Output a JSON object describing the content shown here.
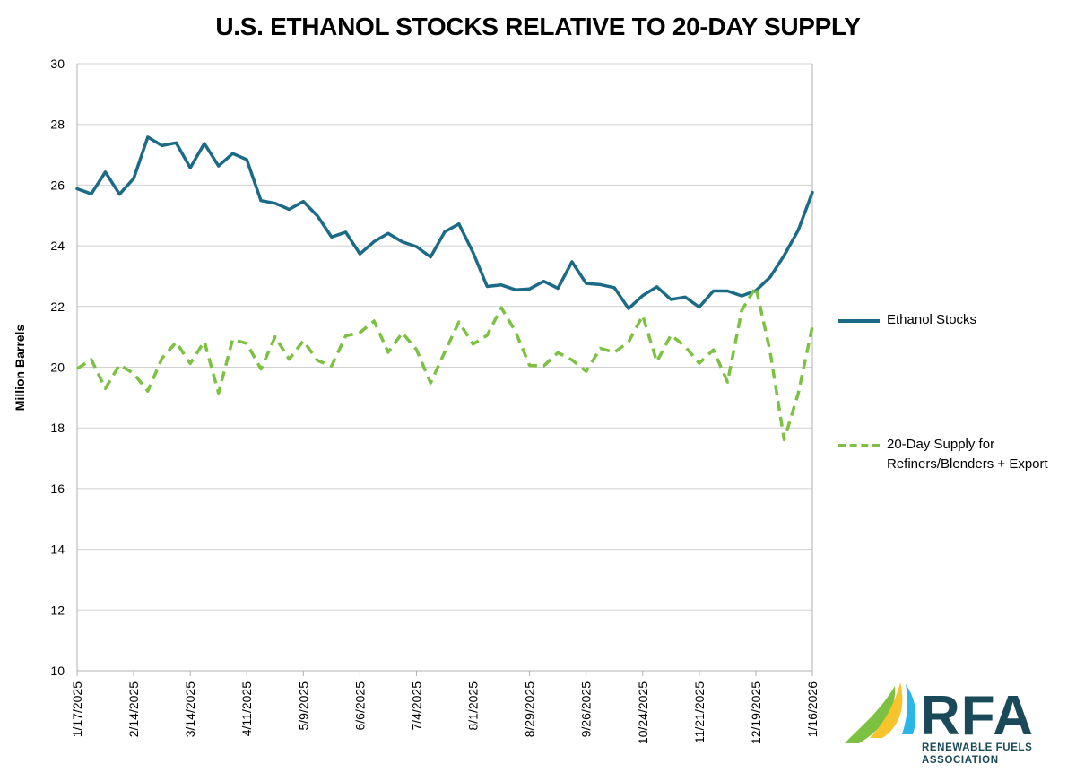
{
  "chart_data": {
    "type": "line",
    "title": "U.S. ETHANOL STOCKS RELATIVE TO 20-DAY SUPPLY",
    "ylabel": "Million Barrels",
    "xlabel": "",
    "ylim": [
      10,
      30
    ],
    "yticks": [
      10,
      12,
      14,
      16,
      18,
      20,
      22,
      24,
      26,
      28,
      30
    ],
    "x_tick_labels": [
      "1/17/2025",
      "2/14/2025",
      "3/14/2025",
      "4/11/2025",
      "5/9/2025",
      "6/6/2025",
      "7/4/2025",
      "8/1/2025",
      "8/29/2025",
      "9/26/2025",
      "10/24/2025",
      "11/21/2025",
      "12/19/2025",
      "1/16/2026"
    ],
    "x_tick_interval_weeks": 4,
    "grid": "horizontal",
    "legend_position": "right",
    "series": [
      {
        "name": "Ethanol Stocks",
        "color": "#1b6b87",
        "style": "solid",
        "values": [
          25.88,
          25.71,
          26.43,
          25.7,
          26.22,
          27.58,
          27.3,
          27.39,
          26.57,
          27.37,
          26.63,
          27.04,
          26.84,
          25.49,
          25.4,
          25.2,
          25.46,
          24.98,
          24.29,
          24.45,
          23.73,
          24.14,
          24.41,
          24.13,
          23.97,
          23.63,
          24.46,
          24.72,
          23.78,
          22.66,
          22.71,
          22.55,
          22.58,
          22.83,
          22.6,
          23.47,
          22.76,
          22.72,
          22.62,
          21.93,
          22.36,
          22.65,
          22.23,
          22.31,
          21.98,
          22.51,
          22.51,
          22.35,
          22.52,
          22.96,
          23.68,
          24.51,
          25.76
        ]
      },
      {
        "name": "20-Day Supply for Refiners/Blenders + Export",
        "color": "#7dc142",
        "style": "dashed",
        "values": [
          19.95,
          20.25,
          19.3,
          20.08,
          19.79,
          19.21,
          20.29,
          20.82,
          20.12,
          20.85,
          19.15,
          20.92,
          20.78,
          19.94,
          21.0,
          20.26,
          20.87,
          20.22,
          20.04,
          21.03,
          21.14,
          21.52,
          20.49,
          21.13,
          20.58,
          19.48,
          20.5,
          21.49,
          20.76,
          21.05,
          21.96,
          21.18,
          20.06,
          20.04,
          20.48,
          20.24,
          19.86,
          20.62,
          20.49,
          20.83,
          21.7,
          20.18,
          21.06,
          20.68,
          20.13,
          20.57,
          19.51,
          21.87,
          22.64,
          20.54,
          17.61,
          19.13,
          21.34
        ]
      }
    ]
  },
  "logo": {
    "acronym": "RFA",
    "line1": "RENEWABLE FUELS",
    "line2": "ASSOCIATION",
    "colors": {
      "text": "#1a4a5a",
      "green": "#7dc142",
      "yellow": "#f7c52b",
      "blue": "#2bb6e8"
    }
  }
}
